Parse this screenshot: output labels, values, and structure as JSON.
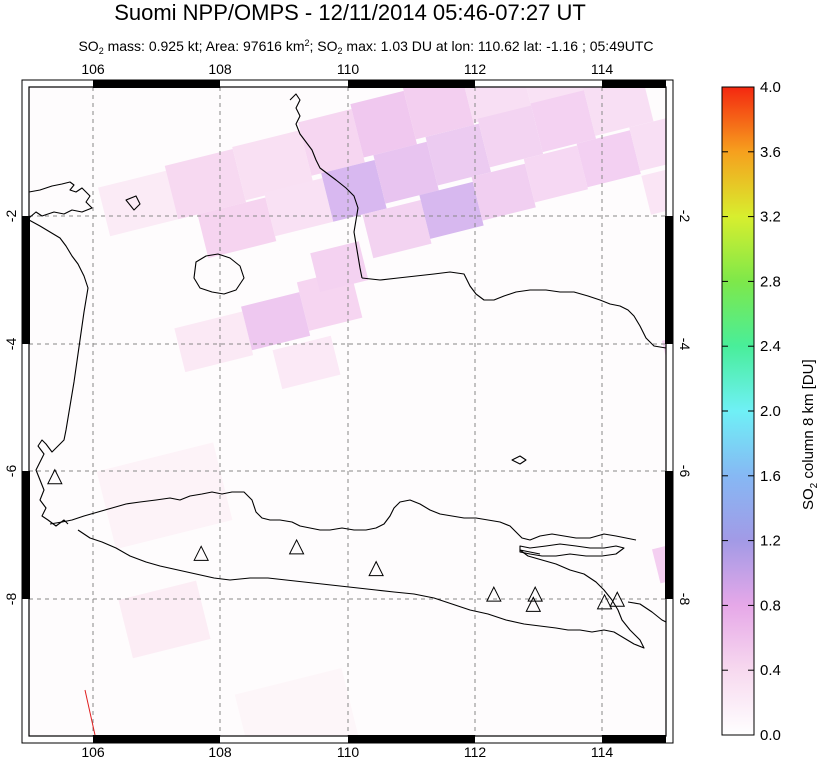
{
  "header": {
    "title": "Suomi NPP/OMPS - 12/11/2014 05:46-07:27 UT",
    "subtitle": {
      "so2_label": "SO",
      "so2_sub": "2",
      "mass_text": " mass: 0.925 kt; Area: 97616 km",
      "area_sup": "2",
      "sep_text": "; SO",
      "max_sub": "2",
      "max_text": " max: 1.03 DU at lon: 110.62 lat: -1.16 ; 05:49UTC"
    }
  },
  "map": {
    "lon_ticks": [
      "106",
      "108",
      "110",
      "112",
      "114"
    ],
    "lat_ticks": [
      "-2",
      "-4",
      "-6",
      "-8"
    ],
    "lon_range": [
      105.0,
      115.0
    ],
    "lat_range": [
      -10.0,
      0.0
    ],
    "grid": "dashed",
    "volcanoes": [
      {
        "lon": 105.4,
        "lat": -6.1
      },
      {
        "lon": 107.7,
        "lat": -7.3
      },
      {
        "lon": 109.2,
        "lat": -7.2
      },
      {
        "lon": 110.45,
        "lat": -7.54
      },
      {
        "lon": 112.3,
        "lat": -7.94
      },
      {
        "lon": 112.95,
        "lat": -7.94
      },
      {
        "lon": 112.92,
        "lat": -8.1
      },
      {
        "lon": 114.04,
        "lat": -8.06
      },
      {
        "lon": 114.24,
        "lat": -8.02
      }
    ]
  },
  "colorbar": {
    "tick_labels": [
      "0.0",
      "0.4",
      "0.8",
      "1.2",
      "1.6",
      "2.0",
      "2.4",
      "2.8",
      "3.2",
      "3.6",
      "4.0"
    ],
    "range": [
      0.0,
      4.0
    ],
    "title": {
      "prefix": "SO",
      "sub": "2",
      "suffix": " column 8 km [DU]"
    }
  },
  "colors": {
    "grid": "#888888",
    "coast": "#000000",
    "so2_low": "#fbe8f4",
    "so2_mid": "#f6cdf0",
    "so2_high": "#c9a8ec"
  }
}
